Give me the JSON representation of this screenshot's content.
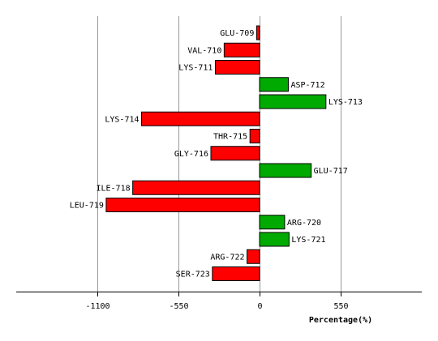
{
  "chart_data": {
    "type": "bar",
    "orientation": "horizontal",
    "xlabel": "Percentage(%)",
    "xlim": [
      -1650,
      1100
    ],
    "xticks": [
      -1100,
      -550,
      0,
      550
    ],
    "xtick_labels": [
      "-1100",
      "-550",
      "0",
      "550"
    ],
    "grid": true,
    "colors": {
      "negative": "#ff0000",
      "positive": "#00aa00",
      "grid": "#999999",
      "axis": "#000000"
    },
    "categories": [
      "GLU-709",
      "VAL-710",
      "LYS-711",
      "ASP-712",
      "LYS-713",
      "LYS-714",
      "THR-715",
      "GLY-716",
      "GLU-717",
      "ILE-718",
      "LEU-719",
      "ARG-720",
      "LYS-721",
      "ARG-722",
      "SER-723"
    ],
    "values": [
      -20,
      -240,
      -300,
      195,
      450,
      -800,
      -65,
      -330,
      350,
      -860,
      -1040,
      170,
      200,
      -85,
      -320
    ]
  }
}
